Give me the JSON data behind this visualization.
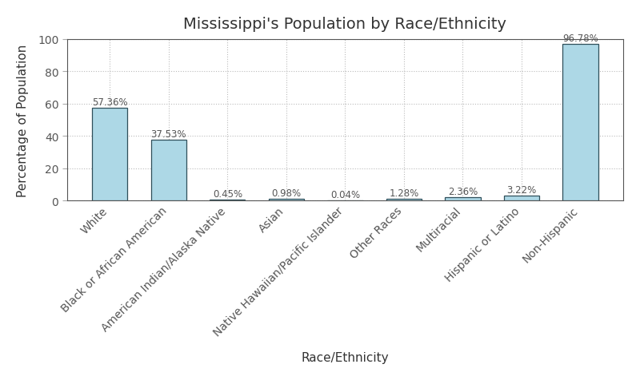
{
  "title": "Mississippi's Population by Race/Ethnicity",
  "xlabel": "Race/Ethnicity",
  "ylabel": "Percentage of Population",
  "categories": [
    "White",
    "Black or African American",
    "American Indian/Alaska Native",
    "Asian",
    "Native Hawaiian/Pacific Islander",
    "Other Races",
    "Multiracial",
    "Hispanic or Latino",
    "Non-Hispanic"
  ],
  "values": [
    57.36,
    37.53,
    0.45,
    0.98,
    0.04,
    1.28,
    2.36,
    3.22,
    96.78
  ],
  "bar_color": "#add8e6",
  "bar_edge_color": "#2f4f5a",
  "background_color": "#ffffff",
  "grid_color": "#bbbbbb",
  "ylim": [
    0,
    100
  ],
  "yticks": [
    0,
    20,
    40,
    60,
    80,
    100
  ],
  "title_fontsize": 14,
  "label_fontsize": 11,
  "tick_fontsize": 10,
  "annotation_fontsize": 8.5
}
